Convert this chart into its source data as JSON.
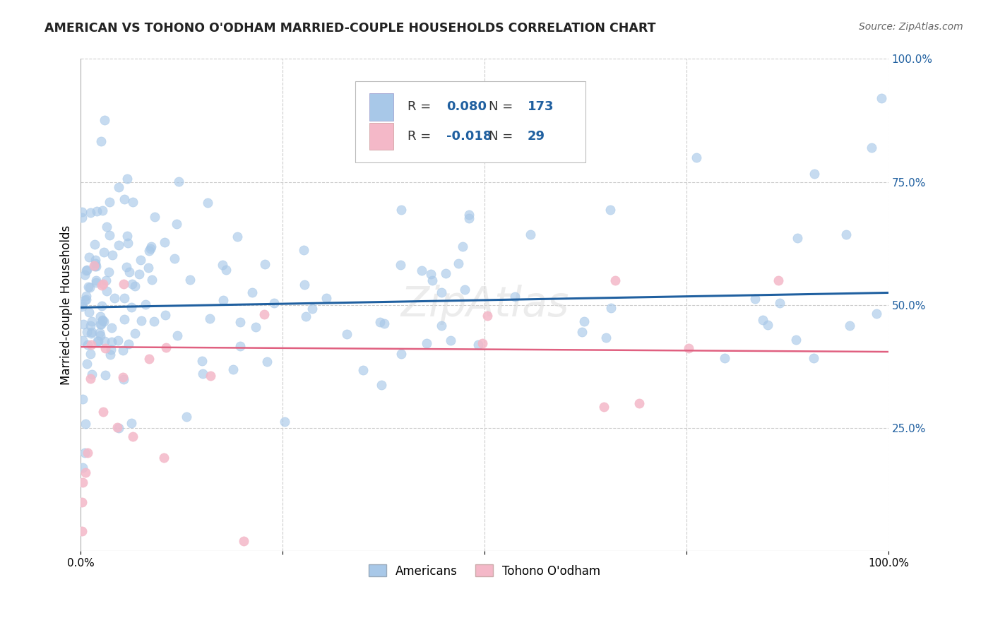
{
  "title": "AMERICAN VS TOHONO O'ODHAM MARRIED-COUPLE HOUSEHOLDS CORRELATION CHART",
  "source": "Source: ZipAtlas.com",
  "ylabel": "Married-couple Households",
  "xlim": [
    0,
    1
  ],
  "ylim": [
    0,
    1
  ],
  "blue_color": "#a8c8e8",
  "pink_color": "#f4b8c8",
  "blue_line_color": "#2060a0",
  "pink_line_color": "#e06080",
  "background_color": "#ffffff",
  "grid_color": "#cccccc",
  "watermark_text": "ZipAtlas",
  "right_ytick_color": "#2060a0",
  "legend_text_color": "#2060a0",
  "legend_R_color_blue": "#2060a0",
  "legend_R_color_pink": "#2060a0",
  "americans_R_label": "0.080",
  "americans_N_label": "173",
  "tohono_R_label": "-0.018",
  "tohono_N_label": "29"
}
